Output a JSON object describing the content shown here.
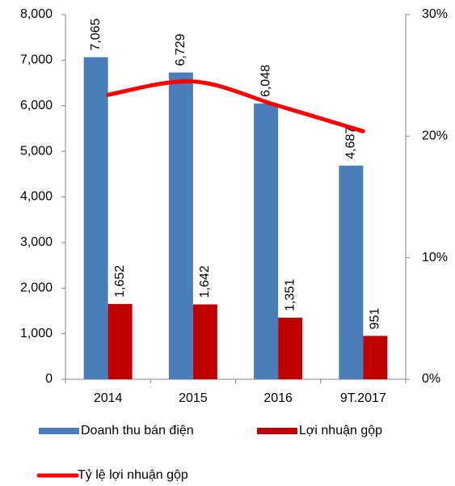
{
  "chart_data": {
    "type": "bar_line",
    "categories": [
      "2014",
      "2015",
      "2016",
      "9T.2017"
    ],
    "series": [
      {
        "name": "Doanh thu bán điện",
        "color": "#4a7ebb",
        "values": [
          7065,
          6729,
          6048,
          4687
        ],
        "value_labels": [
          "7,065",
          "6,729",
          "6,048",
          "4,687"
        ]
      },
      {
        "name": "Lợi nhuận gộp",
        "color": "#c00000",
        "values": [
          1652,
          1642,
          1351,
          951
        ],
        "value_labels": [
          "1,652",
          "1,642",
          "1,351",
          "951"
        ]
      },
      {
        "name": "Tỷ lệ lợi nhuận gộp",
        "color": "#ff0000",
        "type": "line",
        "axis": "y2",
        "values": [
          23.4,
          24.5,
          22.5,
          20.4
        ]
      }
    ],
    "ylim": [
      0,
      8000
    ],
    "yticks": [
      0,
      {
        "value": 1000,
        "label": "1,000"
      },
      {
        "value": 2000,
        "label": "2,000"
      },
      {
        "value": 3000,
        "label": "3,000"
      },
      {
        "value": 4000,
        "label": "4,000"
      },
      {
        "value": 5000,
        "label": "5,000"
      },
      {
        "value": 6000,
        "label": "6,000"
      },
      {
        "value": 7000,
        "label": "7,000"
      },
      {
        "value": 8000,
        "label": "8,000"
      }
    ],
    "y2lim": [
      0,
      30
    ],
    "y2ticks": [
      {
        "value": 0,
        "label": "0%"
      },
      {
        "value": 10,
        "label": "10%"
      },
      {
        "value": 20,
        "label": "20%"
      },
      {
        "value": 30,
        "label": "30%"
      }
    ]
  }
}
